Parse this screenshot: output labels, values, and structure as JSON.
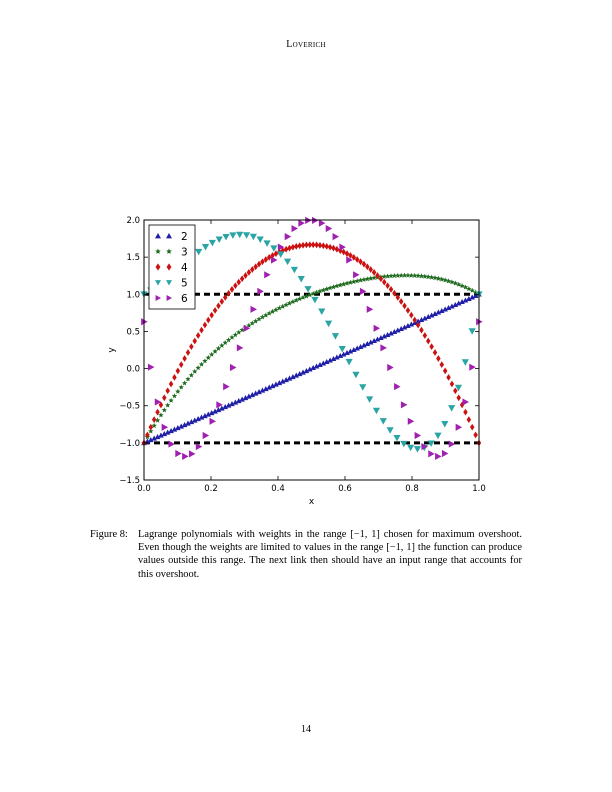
{
  "header": {
    "running_head": "Loverich"
  },
  "figure": {
    "label": "Figure 8:",
    "caption": "Lagrange polynomials with weights in the range [−1, 1] chosen for maximum overshoot. Even though the weights are limited to values in the range [−1, 1] the function can produce values outside this range. The next link then should have an input range that accounts for this overshoot."
  },
  "footer": {
    "page_number": "14"
  },
  "chart_data": {
    "type": "scatter",
    "title": "",
    "xlabel": "x",
    "ylabel": "y",
    "xlim": [
      0.0,
      1.0
    ],
    "ylim": [
      -1.5,
      2.0
    ],
    "x_ticks": [
      "0.0",
      "0.2",
      "0.4",
      "0.6",
      "0.8",
      "1.0"
    ],
    "y_ticks": [
      "−1.5",
      "−1.0",
      "−0.5",
      "0.0",
      "0.5",
      "1.0",
      "1.5",
      "2.0"
    ],
    "legend_position": "top-left",
    "grid": false,
    "reference_lines": [
      {
        "y": 1.0,
        "style": "dashed",
        "color": "#000000"
      },
      {
        "y": -1.0,
        "style": "dashed",
        "color": "#000000"
      }
    ],
    "series": [
      {
        "name": "2",
        "marker": "triangle-up",
        "color": "#1f1fa8",
        "count": 100,
        "x": [
          0.0,
          0.25,
          0.5,
          0.75,
          1.0
        ],
        "y": [
          -1.0,
          -0.5,
          0.0,
          0.5,
          1.0
        ]
      },
      {
        "name": "3",
        "marker": "star",
        "color": "#1e6a1e",
        "count": 100,
        "x": [
          0.0,
          0.25,
          0.5,
          0.75,
          1.0
        ],
        "y": [
          -1.0,
          0.375,
          1.0,
          1.25,
          1.0
        ]
      },
      {
        "name": "4",
        "marker": "diamond",
        "color": "#cc1111",
        "count": 100,
        "x": [
          0.0,
          0.25,
          0.5,
          0.75,
          1.0
        ],
        "y": [
          -1.0,
          1.0,
          1.667,
          1.0,
          -1.0
        ]
      },
      {
        "name": "5",
        "marker": "triangle-down",
        "color": "#2aa4a4",
        "count": 50,
        "x": [
          0.0,
          0.3,
          0.5,
          0.8,
          1.0
        ],
        "y": [
          1.0,
          1.8,
          1.0,
          -1.07,
          1.0
        ]
      },
      {
        "name": "6",
        "marker": "triangle-right",
        "color": "#a020b0",
        "count": 50,
        "x": [
          0.0,
          0.15,
          0.5,
          0.85,
          1.0
        ],
        "y": [
          0.63,
          -1.12,
          2.0,
          -1.12,
          0.63
        ]
      }
    ]
  }
}
